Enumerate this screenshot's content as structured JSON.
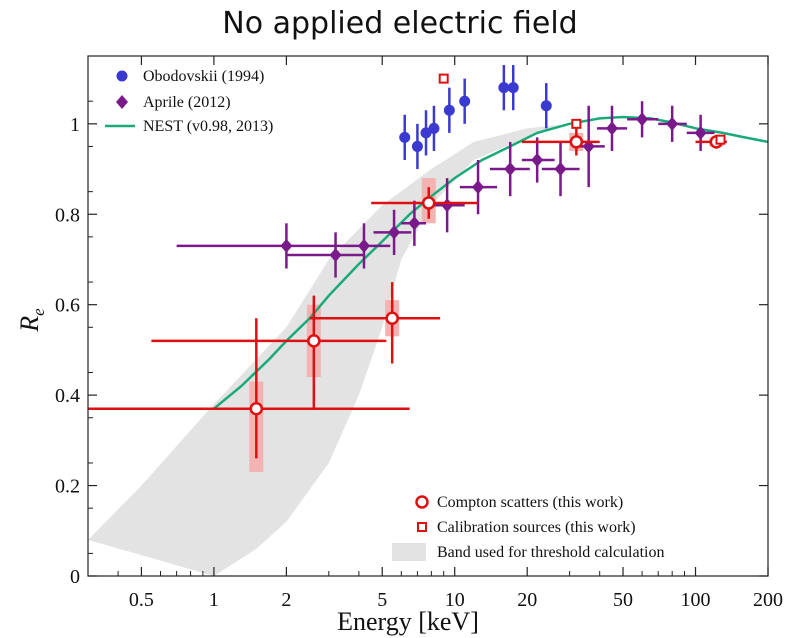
{
  "chart_data": {
    "type": "scatter",
    "title": "No applied electric field",
    "xlabel": "Energy [keV]",
    "ylabel": "R",
    "ylabel_sub": "e",
    "xscale": "log",
    "xlim": [
      0.3,
      200
    ],
    "ylim": [
      0,
      1.15
    ],
    "x_ticks": [
      0.5,
      1,
      2,
      5,
      10,
      20,
      50,
      100,
      200
    ],
    "x_tick_labels": [
      "0.5",
      "1",
      "2",
      "5",
      "10",
      "20",
      "50",
      "100",
      "200"
    ],
    "y_ticks": [
      0,
      0.2,
      0.4,
      0.6,
      0.8,
      1
    ],
    "y_tick_labels": [
      "0",
      "0.2",
      "0.4",
      "0.6",
      "0.8",
      "1"
    ],
    "colors": {
      "obodovskii": "#3a3ad0",
      "aprile": "#7a1a8a",
      "nest": "#1aaa7a",
      "compton": "#dd1111",
      "calibration": "#dd1111",
      "band": "#e3e3e3",
      "compton_band": "#f4b3b3"
    },
    "series": [
      {
        "name": "Obodovskii (1994)",
        "marker": "circle",
        "points": [
          {
            "x": 6.2,
            "y": 0.97,
            "yerr": 0.05
          },
          {
            "x": 7.0,
            "y": 0.95,
            "yerr": 0.05
          },
          {
            "x": 7.6,
            "y": 0.98,
            "yerr": 0.05
          },
          {
            "x": 8.2,
            "y": 0.99,
            "yerr": 0.05
          },
          {
            "x": 9.5,
            "y": 1.03,
            "yerr": 0.05
          },
          {
            "x": 11.0,
            "y": 1.05,
            "yerr": 0.05
          },
          {
            "x": 16.0,
            "y": 1.08,
            "yerr": 0.05
          },
          {
            "x": 17.5,
            "y": 1.08,
            "yerr": 0.05
          },
          {
            "x": 24.0,
            "y": 1.04,
            "yerr": 0.05
          }
        ]
      },
      {
        "name": "Aprile (2012)",
        "marker": "diamond",
        "points": [
          {
            "x": 2.0,
            "y": 0.73,
            "xlo": 0.7,
            "xhi": 3.2,
            "yerr": 0.05
          },
          {
            "x": 3.2,
            "y": 0.71,
            "xlo": 2.0,
            "xhi": 4.2,
            "yerr": 0.05
          },
          {
            "x": 4.2,
            "y": 0.73,
            "xlo": 3.2,
            "xhi": 5.4,
            "yerr": 0.05
          },
          {
            "x": 5.6,
            "y": 0.76,
            "xlo": 4.6,
            "xhi": 6.6,
            "yerr": 0.05
          },
          {
            "x": 6.8,
            "y": 0.78,
            "xlo": 6.0,
            "xhi": 7.6,
            "yerr": 0.05
          },
          {
            "x": 9.3,
            "y": 0.82,
            "xlo": 7.6,
            "xhi": 11.0,
            "yerr": 0.06
          },
          {
            "x": 12.5,
            "y": 0.86,
            "xlo": 10.5,
            "xhi": 15.0,
            "yerr": 0.06
          },
          {
            "x": 17.0,
            "y": 0.9,
            "xlo": 14.0,
            "xhi": 20.5,
            "yerr": 0.06
          },
          {
            "x": 22.0,
            "y": 0.92,
            "xlo": 19.0,
            "xhi": 26.0,
            "yerr": 0.05
          },
          {
            "x": 27.5,
            "y": 0.9,
            "xlo": 23.0,
            "xhi": 33.0,
            "yerr": 0.06
          },
          {
            "x": 36.0,
            "y": 0.95,
            "xlo": 31.0,
            "xhi": 42.0,
            "yerr": 0.09
          },
          {
            "x": 45.0,
            "y": 0.99,
            "xlo": 39.0,
            "xhi": 52.0,
            "yerr": 0.05
          },
          {
            "x": 60.0,
            "y": 1.01,
            "xlo": 52.0,
            "xhi": 70.0,
            "yerr": 0.04
          },
          {
            "x": 80.0,
            "y": 1.0,
            "xlo": 70.0,
            "xhi": 92.0,
            "yerr": 0.04
          },
          {
            "x": 105.0,
            "y": 0.98,
            "xlo": 92.0,
            "xhi": 120.0,
            "yerr": 0.04
          }
        ]
      },
      {
        "name": "NEST (v0.98, 2013)",
        "marker": "line",
        "points": [
          {
            "x": 1.0,
            "y": 0.37
          },
          {
            "x": 1.3,
            "y": 0.42
          },
          {
            "x": 1.7,
            "y": 0.48
          },
          {
            "x": 2.0,
            "y": 0.52
          },
          {
            "x": 2.5,
            "y": 0.57
          },
          {
            "x": 3.0,
            "y": 0.62
          },
          {
            "x": 4.0,
            "y": 0.69
          },
          {
            "x": 5.0,
            "y": 0.74
          },
          {
            "x": 6.5,
            "y": 0.8
          },
          {
            "x": 8.0,
            "y": 0.84
          },
          {
            "x": 10.0,
            "y": 0.88
          },
          {
            "x": 13.0,
            "y": 0.92
          },
          {
            "x": 17.0,
            "y": 0.95
          },
          {
            "x": 22.0,
            "y": 0.98
          },
          {
            "x": 30.0,
            "y": 1.0
          },
          {
            "x": 40.0,
            "y": 1.012
          },
          {
            "x": 50.0,
            "y": 1.015
          },
          {
            "x": 65.0,
            "y": 1.012
          },
          {
            "x": 80.0,
            "y": 1.003
          },
          {
            "x": 100.0,
            "y": 0.99
          },
          {
            "x": 130.0,
            "y": 0.98
          },
          {
            "x": 160.0,
            "y": 0.97
          },
          {
            "x": 200.0,
            "y": 0.96
          }
        ]
      },
      {
        "name": "Compton scatters (this work)",
        "marker": "open-circle",
        "points": [
          {
            "x": 1.5,
            "y": 0.37,
            "xlo": 0.3,
            "xhi": 6.5,
            "ylo": 0.26,
            "yhi": 0.57,
            "bandlo": 0.23,
            "bandhi": 0.43
          },
          {
            "x": 2.6,
            "y": 0.52,
            "xlo": 0.55,
            "xhi": 5.2,
            "ylo": 0.37,
            "yhi": 0.62,
            "bandlo": 0.44,
            "bandhi": 0.6
          },
          {
            "x": 5.5,
            "y": 0.57,
            "xlo": 2.5,
            "xhi": 8.7,
            "ylo": 0.47,
            "yhi": 0.65,
            "bandlo": 0.53,
            "bandhi": 0.61
          },
          {
            "x": 7.8,
            "y": 0.825,
            "xlo": 4.5,
            "xhi": 12.5,
            "ylo": 0.79,
            "yhi": 0.86,
            "bandlo": 0.78,
            "bandhi": 0.88
          },
          {
            "x": 32.0,
            "y": 0.96,
            "xlo": 19.0,
            "xhi": 40.0,
            "ylo": 0.93,
            "yhi": 0.99,
            "bandlo": 0.94,
            "bandhi": 0.98
          },
          {
            "x": 122.0,
            "y": 0.96,
            "xlo": 100.0,
            "xhi": 135.0,
            "ylo": 0.945,
            "yhi": 0.975,
            "bandlo": 0.95,
            "bandhi": 0.97
          }
        ]
      },
      {
        "name": "Calibration sources (this work)",
        "marker": "open-square",
        "points": [
          {
            "x": 9.0,
            "y": 1.1
          },
          {
            "x": 32.0,
            "y": 1.0
          },
          {
            "x": 127.0,
            "y": 0.965
          }
        ]
      },
      {
        "name": "Band used for threshold calculation",
        "marker": "band",
        "upper": [
          {
            "x": 0.3,
            "y": 0.08
          },
          {
            "x": 0.5,
            "y": 0.2
          },
          {
            "x": 1.0,
            "y": 0.38
          },
          {
            "x": 2.0,
            "y": 0.55
          },
          {
            "x": 3.0,
            "y": 0.7
          },
          {
            "x": 5.0,
            "y": 0.82
          },
          {
            "x": 8.0,
            "y": 0.9
          },
          {
            "x": 12.0,
            "y": 0.96
          },
          {
            "x": 20.0,
            "y": 0.99
          },
          {
            "x": 30.0,
            "y": 1.0
          }
        ],
        "lower": [
          {
            "x": 30.0,
            "y": 1.0
          },
          {
            "x": 20.0,
            "y": 0.97
          },
          {
            "x": 12.0,
            "y": 0.92
          },
          {
            "x": 8.0,
            "y": 0.82
          },
          {
            "x": 6.0,
            "y": 0.7
          },
          {
            "x": 5.0,
            "y": 0.55
          },
          {
            "x": 4.0,
            "y": 0.4
          },
          {
            "x": 3.0,
            "y": 0.25
          },
          {
            "x": 2.0,
            "y": 0.12
          },
          {
            "x": 1.5,
            "y": 0.06
          },
          {
            "x": 1.0,
            "y": 0.0
          }
        ]
      }
    ],
    "legend_top": {
      "position": "top-left",
      "entries": [
        "Obodovskii (1994)",
        "Aprile (2012)",
        "NEST (v0.98, 2013)"
      ]
    },
    "legend_bottom": {
      "position": "bottom-right",
      "entries": [
        "Compton scatters (this work)",
        "Calibration sources (this work)",
        "Band used for threshold calculation"
      ]
    }
  }
}
